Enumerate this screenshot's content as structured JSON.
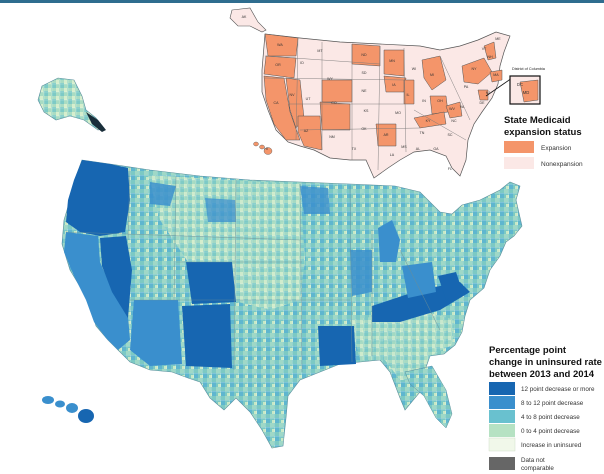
{
  "inset_map": {
    "dc_callout": "District of Columbia",
    "legend": {
      "title_lines": [
        "State Medicaid",
        "expansion status"
      ],
      "items": [
        {
          "label": "Expansion",
          "color": "#f4956a"
        },
        {
          "label": "Nonexpansion",
          "color": "#fbe8e6"
        }
      ]
    },
    "state_labels": [
      {
        "abbr": "WA",
        "status": "expansion"
      },
      {
        "abbr": "OR",
        "status": "expansion"
      },
      {
        "abbr": "CA",
        "status": "expansion"
      },
      {
        "abbr": "NV",
        "status": "expansion"
      },
      {
        "abbr": "ID",
        "status": "nonexpansion"
      },
      {
        "abbr": "MT",
        "status": "nonexpansion"
      },
      {
        "abbr": "WY",
        "status": "nonexpansion"
      },
      {
        "abbr": "UT",
        "status": "nonexpansion"
      },
      {
        "abbr": "AZ",
        "status": "expansion"
      },
      {
        "abbr": "CO",
        "status": "expansion"
      },
      {
        "abbr": "NM",
        "status": "expansion"
      },
      {
        "abbr": "ND",
        "status": "expansion"
      },
      {
        "abbr": "SD",
        "status": "nonexpansion"
      },
      {
        "abbr": "NE",
        "status": "nonexpansion"
      },
      {
        "abbr": "KS",
        "status": "nonexpansion"
      },
      {
        "abbr": "OK",
        "status": "nonexpansion"
      },
      {
        "abbr": "TX",
        "status": "nonexpansion"
      },
      {
        "abbr": "MN",
        "status": "expansion"
      },
      {
        "abbr": "IA",
        "status": "expansion"
      },
      {
        "abbr": "MO",
        "status": "nonexpansion"
      },
      {
        "abbr": "AR",
        "status": "expansion"
      },
      {
        "abbr": "LA",
        "status": "nonexpansion"
      },
      {
        "abbr": "WI",
        "status": "nonexpansion"
      },
      {
        "abbr": "IL",
        "status": "expansion"
      },
      {
        "abbr": "MI",
        "status": "expansion"
      },
      {
        "abbr": "IN",
        "status": "nonexpansion"
      },
      {
        "abbr": "OH",
        "status": "expansion"
      },
      {
        "abbr": "KY",
        "status": "expansion"
      },
      {
        "abbr": "TN",
        "status": "nonexpansion"
      },
      {
        "abbr": "MS",
        "status": "nonexpansion"
      },
      {
        "abbr": "AL",
        "status": "nonexpansion"
      },
      {
        "abbr": "GA",
        "status": "nonexpansion"
      },
      {
        "abbr": "FL",
        "status": "nonexpansion"
      },
      {
        "abbr": "SC",
        "status": "nonexpansion"
      },
      {
        "abbr": "NC",
        "status": "nonexpansion"
      },
      {
        "abbr": "VA",
        "status": "nonexpansion"
      },
      {
        "abbr": "WV",
        "status": "expansion"
      },
      {
        "abbr": "PA",
        "status": "nonexpansion"
      },
      {
        "abbr": "NY",
        "status": "expansion"
      },
      {
        "abbr": "VT",
        "status": "expansion"
      },
      {
        "abbr": "ME",
        "status": "nonexpansion"
      },
      {
        "abbr": "NH",
        "status": "expansion"
      },
      {
        "abbr": "MA",
        "status": "expansion"
      },
      {
        "abbr": "AK",
        "status": "nonexpansion"
      },
      {
        "abbr": "HI",
        "status": "expansion"
      },
      {
        "abbr": "NJ",
        "status": "expansion"
      },
      {
        "abbr": "DE",
        "status": "expansion"
      },
      {
        "abbr": "MD",
        "status": "expansion"
      },
      {
        "abbr": "DC",
        "status": "expansion"
      }
    ]
  },
  "main_map": {
    "legend": {
      "title_lines": [
        "Percentage point",
        "change in uninsured rate",
        "between 2013 and 2014"
      ],
      "items": [
        {
          "label": "12 point decrease or more",
          "color": "#1766b1"
        },
        {
          "label": "8 to 12 point decrease",
          "color": "#3a8fcd"
        },
        {
          "label": "4 to 8 point decrease",
          "color": "#69c1cf"
        },
        {
          "label": "0 to 4 point decrease",
          "color": "#b6e2c3"
        },
        {
          "label": "Increase in uninsured",
          "color": "#f1f8ea"
        },
        {
          "label_lines": [
            "Data not",
            "comparable"
          ],
          "color": "#666666"
        }
      ]
    }
  },
  "colors": {
    "top_bar": "#2f6d8f",
    "state_border": "#8a8a8a",
    "county_base": "#7cc9c4"
  }
}
